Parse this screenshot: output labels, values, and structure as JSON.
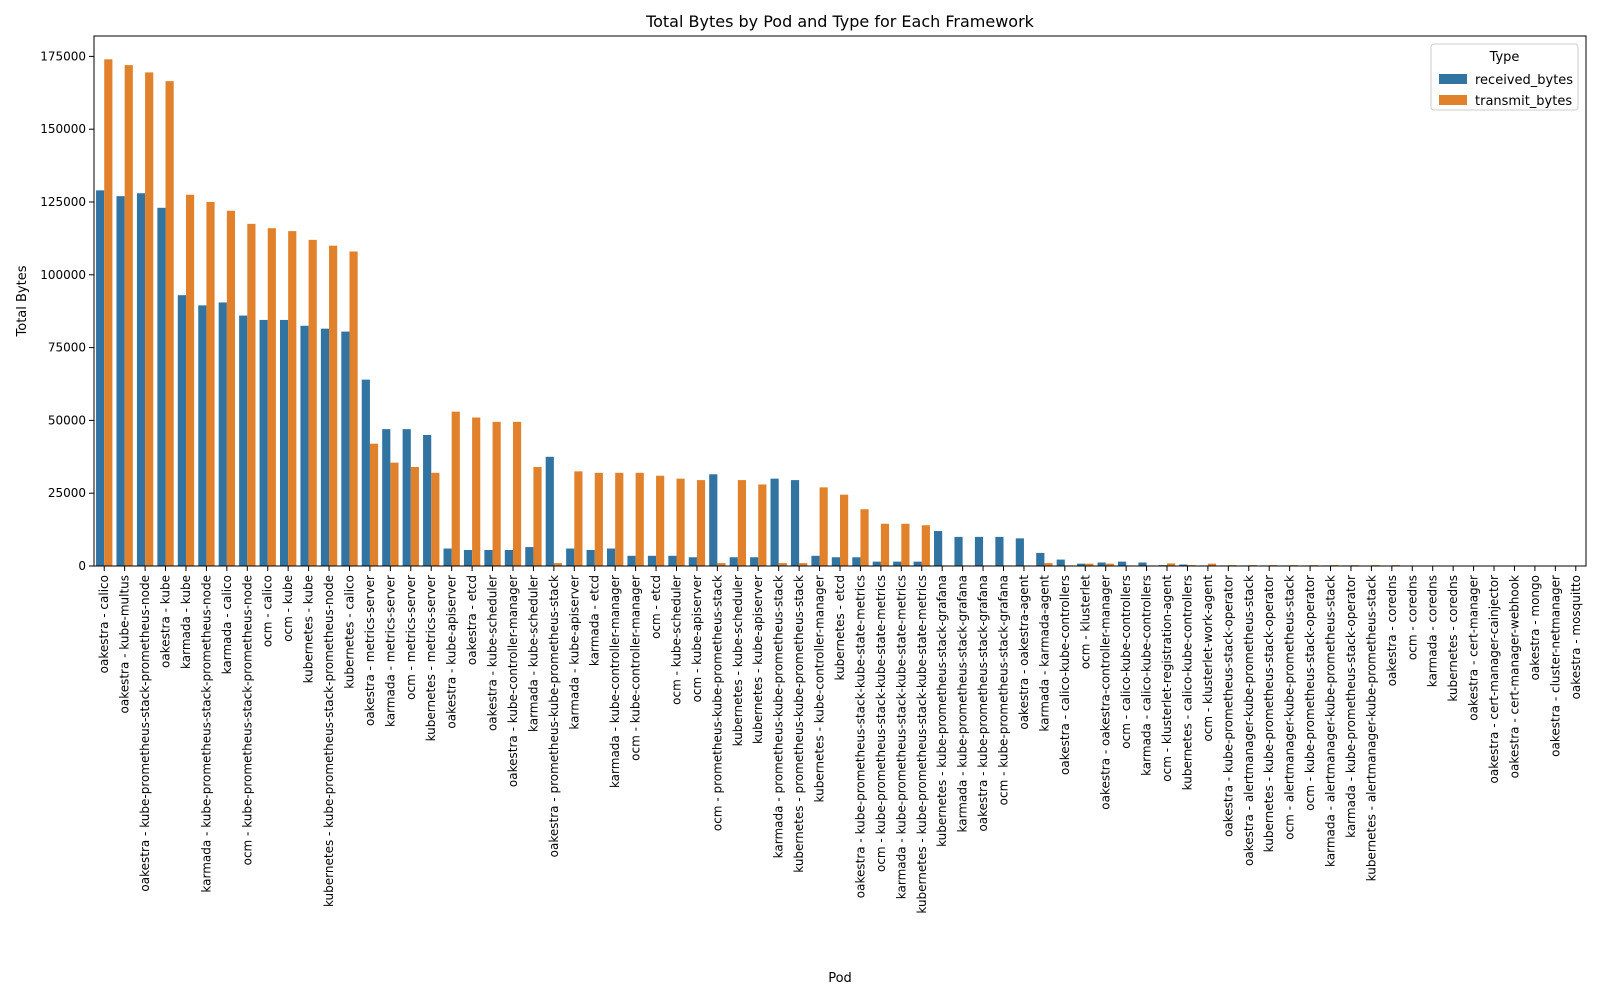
{
  "chart_data": {
    "type": "bar",
    "title": "Total Bytes by Pod and Type for Each Framework",
    "xlabel": "Pod",
    "ylabel": "Total Bytes",
    "ylim": [
      0,
      182000
    ],
    "yticks": [
      0,
      25000,
      50000,
      75000,
      100000,
      125000,
      150000,
      175000
    ],
    "grid": false,
    "legend": {
      "title": "Type",
      "placement": "top-right"
    },
    "categories": [
      "oakestra - calico",
      "oakestra - kube-multus",
      "oakestra - kube-prometheus-stack-prometheus-node",
      "oakestra - kube",
      "karmada - kube",
      "karmada - kube-prometheus-stack-prometheus-node",
      "karmada - calico",
      "ocm - kube-prometheus-stack-prometheus-node",
      "ocm - calico",
      "ocm - kube",
      "kubernetes - kube",
      "kubernetes - kube-prometheus-stack-prometheus-node",
      "kubernetes - calico",
      "oakestra - metrics-server",
      "karmada - metrics-server",
      "ocm - metrics-server",
      "kubernetes - metrics-server",
      "oakestra - kube-apiserver",
      "oakestra - etcd",
      "oakestra - kube-scheduler",
      "oakestra - kube-controller-manager",
      "karmada - kube-scheduler",
      "oakestra - prometheus-kube-prometheus-stack",
      "karmada - kube-apiserver",
      "karmada - etcd",
      "karmada - kube-controller-manager",
      "ocm - kube-controller-manager",
      "ocm - etcd",
      "ocm - kube-scheduler",
      "ocm - kube-apiserver",
      "ocm - prometheus-kube-prometheus-stack",
      "kubernetes - kube-scheduler",
      "kubernetes - kube-apiserver",
      "karmada - prometheus-kube-prometheus-stack",
      "kubernetes - prometheus-kube-prometheus-stack",
      "kubernetes - kube-controller-manager",
      "kubernetes - etcd",
      "oakestra - kube-prometheus-stack-kube-state-metrics",
      "ocm - kube-prometheus-stack-kube-state-metrics",
      "karmada - kube-prometheus-stack-kube-state-metrics",
      "kubernetes - kube-prometheus-stack-kube-state-metrics",
      "kubernetes - kube-prometheus-stack-grafana",
      "karmada - kube-prometheus-stack-grafana",
      "oakestra - kube-prometheus-stack-grafana",
      "ocm - kube-prometheus-stack-grafana",
      "oakestra - oakestra-agent",
      "karmada - karmada-agent",
      "oakestra - calico-kube-controllers",
      "ocm - klusterlet",
      "oakestra - oakestra-controller-manager",
      "ocm - calico-kube-controllers",
      "karmada - calico-kube-controllers",
      "ocm - klusterlet-registration-agent",
      "kubernetes - calico-kube-controllers",
      "ocm - klusterlet-work-agent",
      "oakestra - kube-prometheus-stack-operator",
      "oakestra - alertmanager-kube-prometheus-stack",
      "kubernetes - kube-prometheus-stack-operator",
      "ocm - alertmanager-kube-prometheus-stack",
      "ocm - kube-prometheus-stack-operator",
      "karmada - alertmanager-kube-prometheus-stack",
      "karmada - kube-prometheus-stack-operator",
      "kubernetes - alertmanager-kube-prometheus-stack",
      "oakestra - coredns",
      "ocm - coredns",
      "karmada - coredns",
      "kubernetes - coredns",
      "oakestra - cert-manager",
      "oakestra - cert-manager-cainjector",
      "oakestra - cert-manager-webhook",
      "oakestra - mongo",
      "oakestra - cluster-netmanager",
      "oakestra - mosquitto"
    ],
    "series": [
      {
        "name": "received_bytes",
        "color": "#3274a1",
        "values": [
          129000,
          127000,
          128000,
          123000,
          93000,
          89500,
          90500,
          86000,
          84500,
          84500,
          82500,
          81500,
          80500,
          64000,
          47000,
          47000,
          45000,
          6000,
          5500,
          5500,
          5500,
          6500,
          37500,
          6000,
          5500,
          6000,
          3500,
          3500,
          3500,
          3000,
          31500,
          3000,
          3000,
          30000,
          29500,
          3500,
          3000,
          3000,
          1500,
          1500,
          1500,
          12000,
          10000,
          10000,
          10000,
          9500,
          4500,
          2200,
          800,
          1200,
          1500,
          1200,
          300,
          500,
          200,
          200,
          200,
          200,
          200,
          200,
          200,
          200,
          100,
          100,
          100,
          100,
          100,
          100,
          100,
          100,
          100,
          100,
          100
        ]
      },
      {
        "name": "transmit_bytes",
        "color": "#e1812c",
        "values": [
          174000,
          172000,
          169500,
          166500,
          127500,
          125000,
          122000,
          117500,
          116000,
          115000,
          112000,
          110000,
          108000,
          42000,
          35500,
          34000,
          32000,
          53000,
          51000,
          49500,
          49500,
          34000,
          1000,
          32500,
          32000,
          32000,
          32000,
          31000,
          30000,
          29500,
          1000,
          29500,
          28000,
          1000,
          1000,
          27000,
          24500,
          19500,
          14500,
          14500,
          14000,
          200,
          200,
          200,
          200,
          200,
          1000,
          200,
          800,
          800,
          200,
          200,
          900,
          300,
          800,
          300,
          300,
          300,
          300,
          300,
          300,
          300,
          300,
          300,
          100,
          100,
          100,
          100,
          100,
          100,
          100,
          100,
          100
        ]
      }
    ]
  }
}
